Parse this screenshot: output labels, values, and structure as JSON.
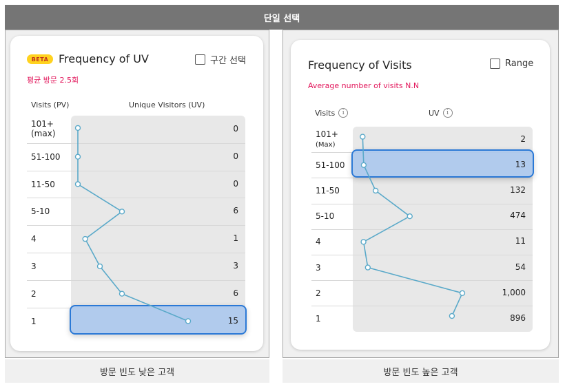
{
  "header": {
    "title": "단일 선택"
  },
  "left": {
    "beta_label": "BETA",
    "title": "Frequency of UV",
    "checkbox_label": "구간 선택",
    "subtitle": "평균 방문 2.5회",
    "col_visits": "Visits (PV)",
    "col_uv": "Unique Visitors (UV)",
    "caption": "방문 빈도 낮은 고객",
    "selected_row": "1",
    "rows": [
      {
        "label": "101+",
        "sub": "(max)",
        "value": 0
      },
      {
        "label": "51-100",
        "sub": "",
        "value": 0
      },
      {
        "label": "11-50",
        "sub": "",
        "value": 0
      },
      {
        "label": "5-10",
        "sub": "",
        "value": 6
      },
      {
        "label": "4",
        "sub": "",
        "value": 1
      },
      {
        "label": "3",
        "sub": "",
        "value": 3
      },
      {
        "label": "2",
        "sub": "",
        "value": 6
      },
      {
        "label": "1",
        "sub": "",
        "value": 15
      }
    ]
  },
  "right": {
    "title": "Frequency of Visits",
    "checkbox_label": "Range",
    "subtitle": "Average number of visits N.N",
    "col_visits": "Visits",
    "col_uv": "UV",
    "info_glyph": "i",
    "caption": "방문 빈도 높은 고객",
    "selected_row": "51-100",
    "rows": [
      {
        "label": "101+",
        "sub": "(Max)",
        "value": "2"
      },
      {
        "label": "51-100",
        "sub": "",
        "value": "13"
      },
      {
        "label": "11-50",
        "sub": "",
        "value": "132"
      },
      {
        "label": "5-10",
        "sub": "",
        "value": "474"
      },
      {
        "label": "4",
        "sub": "",
        "value": "11"
      },
      {
        "label": "3",
        "sub": "",
        "value": "54"
      },
      {
        "label": "2",
        "sub": "",
        "value": "1,000"
      },
      {
        "label": "1",
        "sub": "",
        "value": "896"
      }
    ]
  },
  "colors": {
    "line": "#5aa9c9",
    "highlight_border": "#2b79d6",
    "subtitle": "#e2165b",
    "beta_bg": "#ffd21f"
  }
}
